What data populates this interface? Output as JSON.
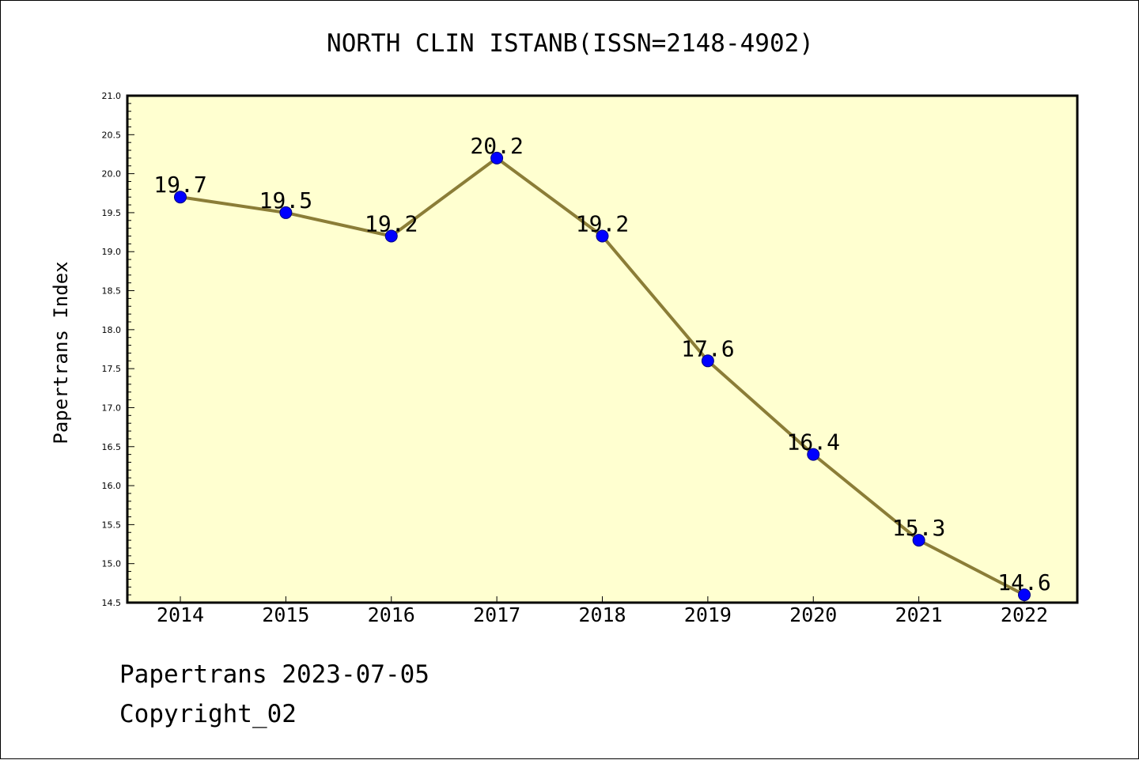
{
  "chart_data": {
    "type": "line",
    "title": "NORTH CLIN ISTANB(ISSN=2148-4902)",
    "xlabel": "",
    "ylabel": "Papertrans Index",
    "categories": [
      "2014",
      "2015",
      "2016",
      "2017",
      "2018",
      "2019",
      "2020",
      "2021",
      "2022"
    ],
    "series": [
      {
        "values": [
          19.7,
          19.5,
          19.2,
          20.2,
          19.2,
          17.6,
          16.4,
          15.3,
          14.6
        ]
      }
    ],
    "data_labels": [
      "19.7",
      "19.5",
      "19.2",
      "20.2",
      "19.2",
      "17.6",
      "16.4",
      "15.3",
      "14.6"
    ],
    "ylim": [
      14.5,
      21.0
    ],
    "yticks": [
      "14.5",
      "15.0",
      "15.5",
      "16.0",
      "16.5",
      "17.0",
      "17.5",
      "18.0",
      "18.5",
      "19.0",
      "19.5",
      "20.0",
      "20.5",
      "21.0"
    ],
    "grid": false,
    "colors": {
      "plot_background": "#ffffd0",
      "line": "#8b7d37",
      "marker": "#0000ff",
      "axes": "#000000"
    }
  },
  "footer": {
    "line1": "Papertrans 2023-07-05",
    "line2": "Copyright_02"
  }
}
